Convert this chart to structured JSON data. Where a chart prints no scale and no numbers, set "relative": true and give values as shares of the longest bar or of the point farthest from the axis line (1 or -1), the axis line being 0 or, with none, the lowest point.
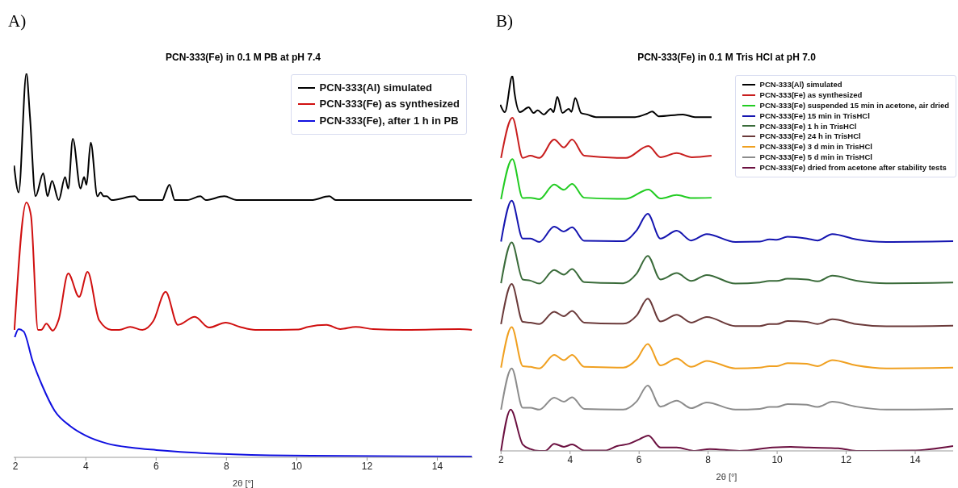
{
  "chart_data": [
    {
      "type": "line",
      "title": "PCN-333(Fe) in 0.1 M PB at pH 7.4",
      "xlabel": "2θ [°]",
      "annotations": [
        "A)"
      ],
      "relative": true,
      "xlim": [
        1.95,
        15
      ],
      "xticks": [
        2,
        4,
        6,
        8,
        10,
        12,
        14
      ],
      "grid": false,
      "legend": "top right",
      "marker": "none",
      "line_style": "solid",
      "series": [
        {
          "name": "PCN-333(Al) simulated",
          "color": "#000000",
          "x": [
            1.96,
            2.09,
            2.31,
            2.41,
            2.57,
            2.79,
            2.91,
            3.04,
            3.23,
            3.41,
            3.5,
            3.63,
            3.85,
            3.95,
            4.02,
            4.14,
            4.33,
            4.42,
            4.51,
            4.6,
            4.73,
            5.39,
            5.52,
            6.18,
            6.27,
            6.38,
            6.53,
            6.89,
            7.26,
            7.41,
            7.94,
            8.29,
            8.65,
            10.41,
            10.93,
            11.11,
            11.64,
            12.17,
            14.81,
            14.98
          ],
          "values": [
            0.76,
            0.69,
            1.0,
            0.89,
            0.68,
            0.74,
            0.68,
            0.72,
            0.67,
            0.73,
            0.7,
            0.83,
            0.7,
            0.73,
            0.71,
            0.82,
            0.68,
            0.69,
            0.68,
            0.68,
            0.67,
            0.68,
            0.67,
            0.67,
            0.69,
            0.71,
            0.67,
            0.67,
            0.68,
            0.67,
            0.68,
            0.67,
            0.67,
            0.67,
            0.68,
            0.67,
            0.67,
            0.67,
            0.67,
            0.67
          ]
        },
        {
          "name": "PCN-333(Fe) as synthesized",
          "color": "#d01010",
          "x": [
            1.97,
            2.31,
            2.44,
            2.64,
            2.73,
            2.88,
            3.06,
            3.23,
            3.5,
            3.81,
            4.05,
            4.38,
            4.73,
            4.95,
            5.26,
            5.61,
            5.92,
            6.27,
            6.62,
            7.1,
            7.5,
            7.98,
            8.38,
            8.82,
            9.52,
            10.05,
            10.32,
            10.85,
            11.24,
            11.68,
            12.17,
            13.05,
            14.63,
            14.98
          ],
          "values": [
            0.332,
            0.664,
            0.63,
            0.332,
            0.332,
            0.348,
            0.33,
            0.359,
            0.479,
            0.418,
            0.483,
            0.357,
            0.332,
            0.332,
            0.34,
            0.332,
            0.355,
            0.431,
            0.345,
            0.366,
            0.338,
            0.351,
            0.34,
            0.332,
            0.332,
            0.333,
            0.34,
            0.345,
            0.334,
            0.34,
            0.334,
            0.332,
            0.334,
            0.332
          ]
        },
        {
          "name": "PCN-333(Fe), after 1 h in PB",
          "color": "#1010e0",
          "x": [
            1.98,
            2.09,
            2.23,
            2.49,
            2.76,
            3.11,
            3.55,
            3.99,
            4.61,
            5.31,
            6.01,
            6.89,
            8.21,
            10.41,
            14.98
          ],
          "values": [
            0.313,
            0.334,
            0.328,
            0.25,
            0.187,
            0.122,
            0.082,
            0.057,
            0.036,
            0.025,
            0.019,
            0.013,
            0.008,
            0.004,
            0.002
          ]
        }
      ]
    },
    {
      "type": "line",
      "title": "PCN-333(Fe) in 0.1 M Tris HCl at pH 7.0",
      "xlabel": "2θ [°]",
      "annotations": [
        "B)"
      ],
      "relative": true,
      "xlim": [
        1.97,
        15.1
      ],
      "xticks": [
        2,
        4,
        6,
        8,
        10,
        12,
        14
      ],
      "grid": false,
      "legend": "top right",
      "marker": "none",
      "line_style": "solid",
      "series": [
        {
          "name": "PCN-333(Al) simulated",
          "color": "#000000",
          "x": [
            1.98,
            2.11,
            2.33,
            2.39,
            2.55,
            2.8,
            2.94,
            3.06,
            3.24,
            3.44,
            3.52,
            3.63,
            3.78,
            3.96,
            4.04,
            4.15,
            4.32,
            4.49,
            4.75,
            5.88,
            6.23,
            6.38,
            6.57,
            7.27,
            7.62,
            8.1
          ],
          "values": [
            0.923,
            0.903,
            1.0,
            0.955,
            0.903,
            0.916,
            0.901,
            0.908,
            0.897,
            0.912,
            0.903,
            0.944,
            0.901,
            0.912,
            0.904,
            0.941,
            0.901,
            0.897,
            0.89,
            0.89,
            0.899,
            0.905,
            0.892,
            0.897,
            0.89,
            0.89
          ]
        },
        {
          "name": "PCN-333(Fe) as synthesized",
          "color": "#c81e1e",
          "x": [
            2.0,
            2.33,
            2.63,
            2.85,
            3.11,
            3.54,
            3.82,
            4.06,
            4.41,
            5.62,
            6.27,
            6.62,
            7.09,
            7.53,
            8.1
          ],
          "values": [
            0.781,
            0.888,
            0.781,
            0.787,
            0.781,
            0.83,
            0.809,
            0.83,
            0.787,
            0.781,
            0.813,
            0.783,
            0.794,
            0.783,
            0.787
          ]
        },
        {
          "name": "PCN-333(Fe) suspended 15 min in acetone, air dried",
          "color": "#22cc22",
          "x": [
            2.0,
            2.33,
            2.63,
            2.85,
            3.11,
            3.54,
            3.82,
            4.06,
            4.41,
            5.62,
            6.27,
            6.62,
            7.09,
            7.53,
            8.1
          ],
          "values": [
            0.671,
            0.778,
            0.674,
            0.675,
            0.671,
            0.71,
            0.696,
            0.712,
            0.675,
            0.672,
            0.697,
            0.673,
            0.682,
            0.674,
            0.675
          ]
        },
        {
          "name": "PCN-333(Fe) 15 min in TrisHCl",
          "color": "#1515b0",
          "x": [
            2.0,
            2.31,
            2.63,
            2.85,
            3.11,
            3.54,
            3.82,
            4.06,
            4.41,
            5.54,
            5.93,
            6.25,
            6.62,
            7.09,
            7.51,
            7.96,
            8.79,
            9.5,
            9.78,
            9.99,
            10.3,
            10.86,
            11.17,
            11.6,
            12.29,
            13.16,
            15.1
          ],
          "values": [
            0.558,
            0.667,
            0.566,
            0.566,
            0.557,
            0.598,
            0.585,
            0.596,
            0.56,
            0.559,
            0.588,
            0.632,
            0.566,
            0.587,
            0.561,
            0.578,
            0.557,
            0.558,
            0.564,
            0.563,
            0.571,
            0.566,
            0.561,
            0.578,
            0.564,
            0.557,
            0.559
          ]
        },
        {
          "name": "PCN-333(Fe) 1 h in TrisHCl",
          "color": "#3a6b3a",
          "x": [
            2.0,
            2.31,
            2.63,
            2.85,
            3.11,
            3.54,
            3.82,
            4.06,
            4.41,
            5.54,
            5.93,
            6.25,
            6.62,
            7.09,
            7.51,
            7.96,
            8.79,
            9.5,
            9.78,
            9.99,
            10.3,
            10.86,
            11.17,
            11.6,
            12.29,
            13.16,
            15.1
          ],
          "values": [
            0.447,
            0.556,
            0.457,
            0.454,
            0.446,
            0.482,
            0.47,
            0.485,
            0.45,
            0.447,
            0.473,
            0.52,
            0.457,
            0.474,
            0.453,
            0.469,
            0.446,
            0.449,
            0.453,
            0.453,
            0.459,
            0.457,
            0.452,
            0.467,
            0.454,
            0.447,
            0.449
          ]
        },
        {
          "name": "PCN-333(Fe) 24 h in TrisHCl",
          "color": "#6b3a3a",
          "x": [
            2.0,
            2.31,
            2.63,
            2.85,
            3.11,
            3.54,
            3.82,
            4.06,
            4.41,
            5.54,
            5.93,
            6.25,
            6.62,
            7.09,
            7.51,
            7.96,
            8.79,
            9.5,
            9.78,
            9.99,
            10.3,
            10.86,
            11.17,
            11.6,
            12.29,
            13.16,
            15.1
          ],
          "values": [
            0.338,
            0.445,
            0.344,
            0.342,
            0.338,
            0.371,
            0.359,
            0.373,
            0.342,
            0.339,
            0.361,
            0.406,
            0.345,
            0.363,
            0.342,
            0.357,
            0.333,
            0.333,
            0.338,
            0.338,
            0.346,
            0.344,
            0.338,
            0.351,
            0.338,
            0.332,
            0.334
          ]
        },
        {
          "name": "PCN-333(Fe) 3 d min in TrisHCl",
          "color": "#f0a020",
          "x": [
            2.0,
            2.31,
            2.63,
            2.85,
            3.11,
            3.54,
            3.82,
            4.06,
            4.41,
            5.54,
            5.93,
            6.25,
            6.62,
            7.09,
            7.51,
            7.96,
            8.79,
            9.5,
            9.78,
            9.99,
            10.3,
            10.86,
            11.17,
            11.6,
            12.29,
            13.16,
            15.1
          ],
          "values": [
            0.222,
            0.33,
            0.226,
            0.224,
            0.22,
            0.256,
            0.242,
            0.256,
            0.224,
            0.222,
            0.244,
            0.285,
            0.228,
            0.246,
            0.224,
            0.24,
            0.22,
            0.222,
            0.226,
            0.226,
            0.234,
            0.232,
            0.226,
            0.242,
            0.228,
            0.22,
            0.222
          ]
        },
        {
          "name": "PCN-333(Fe) 5 d min in TrisHCl",
          "color": "#8c8c8c",
          "x": [
            2.0,
            2.31,
            2.63,
            2.85,
            3.11,
            3.54,
            3.82,
            4.06,
            4.41,
            5.54,
            5.93,
            6.25,
            6.62,
            7.09,
            7.51,
            7.96,
            8.79,
            9.5,
            9.78,
            9.99,
            10.3,
            10.86,
            11.17,
            11.6,
            12.29,
            13.16,
            15.1
          ],
          "values": [
            0.11,
            0.22,
            0.115,
            0.115,
            0.11,
            0.142,
            0.131,
            0.143,
            0.112,
            0.11,
            0.132,
            0.174,
            0.118,
            0.134,
            0.114,
            0.129,
            0.11,
            0.112,
            0.117,
            0.117,
            0.125,
            0.123,
            0.117,
            0.131,
            0.118,
            0.11,
            0.112
          ]
        },
        {
          "name": "PCN-333(Fe) dried from acetone after stability tests",
          "color": "#6b1040",
          "x": [
            2.0,
            2.28,
            2.63,
            2.85,
            3.11,
            3.28,
            3.54,
            3.82,
            4.06,
            4.41,
            5.01,
            5.36,
            5.71,
            6.01,
            6.27,
            6.62,
            7.09,
            7.62,
            8.05,
            8.91,
            9.87,
            10.39,
            10.91,
            11.77,
            12.29,
            13.91,
            15.1
          ],
          "values": [
            0.0,
            0.11,
            0.017,
            0.005,
            0.0,
            0.0,
            0.019,
            0.011,
            0.017,
            0.001,
            0.001,
            0.013,
            0.019,
            0.031,
            0.041,
            0.009,
            0.009,
            0.0,
            0.005,
            0.0,
            0.009,
            0.011,
            0.009,
            0.007,
            0.0,
            0.001,
            0.013
          ]
        }
      ]
    }
  ]
}
